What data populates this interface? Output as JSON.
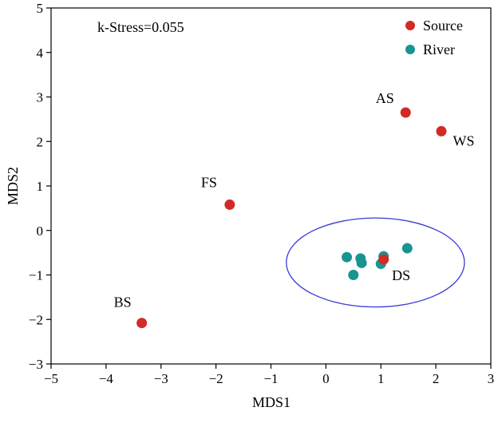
{
  "chart_data": {
    "type": "scatter",
    "title": "",
    "xlabel": "MDS1",
    "ylabel": "MDS2",
    "xlim": [
      -5,
      3
    ],
    "ylim": [
      -3,
      5
    ],
    "xticks": [
      -5,
      -4,
      -3,
      -2,
      -1,
      0,
      1,
      2,
      3
    ],
    "yticks": [
      -3,
      -2,
      -1,
      0,
      1,
      2,
      3,
      4,
      5
    ],
    "xtick_labels": [
      "−5",
      "−4",
      "−3",
      "−2",
      "−1",
      "0",
      "1",
      "2",
      "3"
    ],
    "ytick_labels": [
      "−3",
      "−2",
      "−1",
      "0",
      "1",
      "2",
      "3",
      "4",
      "5"
    ],
    "grid": false,
    "annotation": "k-Stress=0.055",
    "legend_position": "top-right",
    "series": [
      {
        "name": "Source",
        "color": "#d22a26",
        "points": [
          {
            "label": "AS",
            "x": 1.45,
            "y": 2.65
          },
          {
            "label": "WS",
            "x": 2.1,
            "y": 2.23
          },
          {
            "label": "FS",
            "x": -1.75,
            "y": 0.58
          },
          {
            "label": "BS",
            "x": -3.35,
            "y": -2.08
          },
          {
            "label": "DS",
            "x": 1.05,
            "y": -0.65
          }
        ]
      },
      {
        "name": "River",
        "color": "#1a9490",
        "points": [
          {
            "x": 0.38,
            "y": -0.6
          },
          {
            "x": 0.63,
            "y": -0.63
          },
          {
            "x": 0.65,
            "y": -0.73
          },
          {
            "x": 0.5,
            "y": -1.0
          },
          {
            "x": 1.0,
            "y": -0.75
          },
          {
            "x": 1.05,
            "y": -0.58
          },
          {
            "x": 1.48,
            "y": -0.4
          }
        ]
      }
    ],
    "ellipse": {
      "cx": 0.9,
      "cy": -0.72,
      "rx": 1.62,
      "ry": 1.0,
      "color": "#3a3ad6"
    }
  }
}
